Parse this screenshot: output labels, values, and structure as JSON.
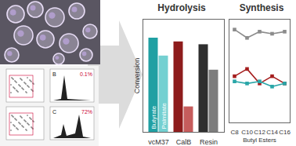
{
  "chart_data": [
    {
      "type": "bar",
      "title": "Hydrolysis",
      "y_label": "Conversion",
      "categories": [
        "ycM37",
        "CalB",
        "Resin"
      ],
      "series": [
        {
          "name": "Butyrate",
          "colors": [
            "#20a0a3",
            "#8e1c1c",
            "#2f2f2f"
          ],
          "values": [
            100,
            96,
            93
          ]
        },
        {
          "name": "Palmitate",
          "colors": [
            "#74d0d1",
            "#c65c5c",
            "#7d7d7d"
          ],
          "values": [
            81,
            27,
            66
          ]
        }
      ],
      "ylim": [
        0,
        120
      ],
      "yticks": [],
      "tick_labels": "x"
    },
    {
      "type": "line",
      "title": "Synthesis",
      "x_label": "Butyl Esters",
      "categories": [
        "C8",
        "C10",
        "C12",
        "C14",
        "C16"
      ],
      "series": [
        {
          "color": "#8c8c8c",
          "marker": "square",
          "line_style": "solid",
          "values": [
            90,
            82,
            88,
            86,
            88
          ]
        },
        {
          "color": "#a51e1e",
          "marker": "square",
          "line_style": "solid",
          "values": [
            45,
            52,
            38,
            45,
            38
          ]
        },
        {
          "color": "#2aa6a8",
          "marker": "square",
          "line_style": "solid",
          "values": [
            40,
            38,
            40,
            35,
            38
          ]
        }
      ],
      "ylim": [
        0,
        100
      ],
      "yticks": [],
      "tick_labels": "x"
    }
  ],
  "figure": {
    "flow_panels": [
      {
        "label": "B",
        "percent": "0.1%"
      },
      {
        "label": "C",
        "percent": "72%"
      }
    ]
  }
}
